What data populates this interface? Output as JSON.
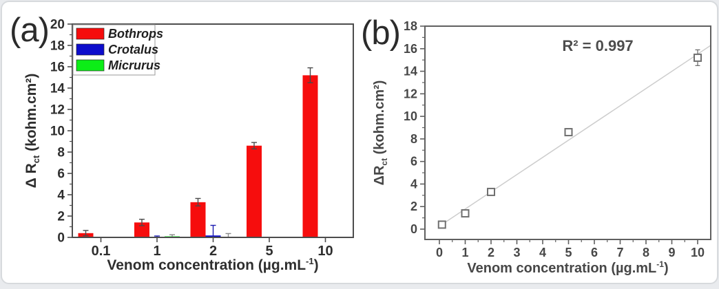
{
  "chart_data": [
    {
      "type": "bar",
      "panel_label": "(a)",
      "title": "",
      "categories": [
        "0.1",
        "1",
        "2",
        "5",
        "10"
      ],
      "series": [
        {
          "name": "Bothrops",
          "color": "#f60d0d",
          "err_color": "#4a4a4a",
          "values": [
            0.4,
            1.4,
            3.3,
            8.6,
            15.2
          ],
          "errors": [
            0.25,
            0.3,
            0.35,
            0.3,
            0.7
          ]
        },
        {
          "name": "Crotalus",
          "color": "#0d0dcc",
          "err_color": "#1a1ab0",
          "values": [
            0,
            0.05,
            0.18,
            0,
            0
          ],
          "errors": [
            0,
            0.08,
            0.95,
            0,
            0
          ]
        },
        {
          "name": "Micrurus",
          "color": "#0ced17",
          "err_color": "#8a8a8a",
          "values": [
            0,
            0.1,
            0.06,
            0,
            0
          ],
          "errors": [
            0,
            0.15,
            0.3,
            0,
            0
          ]
        }
      ],
      "ylim": [
        0,
        20
      ],
      "yticks": [
        0,
        2,
        4,
        6,
        8,
        10,
        12,
        14,
        16,
        18,
        20
      ],
      "ylabel": {
        "pre": "Δ R",
        "sub": "ct",
        "post": " (kohm.cm²)"
      },
      "xlabel": {
        "pre": "Venom concentration (µg.mL",
        "sup": "-1",
        "post": ")"
      },
      "legend_position": "top-left",
      "grid": false,
      "axis_color": "#4c4c4c",
      "text_color": "#2e2e2e"
    },
    {
      "type": "scatter",
      "panel_label": "(b)",
      "title": "",
      "x": [
        0.1,
        1,
        2,
        5,
        10
      ],
      "y": [
        0.4,
        1.4,
        3.3,
        8.6,
        15.2
      ],
      "yerr": [
        0.2,
        0.2,
        0.2,
        0.25,
        0.7
      ],
      "fit_line": {
        "slope": 1.526,
        "intercept": 0.26,
        "x_start": 0,
        "x_end": 10.5,
        "color": "#cdcdcd"
      },
      "annotation": "R² = 0.997",
      "xlim": [
        -0.56,
        10.5
      ],
      "ylim": [
        0,
        18
      ],
      "xticks": [
        0,
        1,
        2,
        3,
        4,
        5,
        6,
        7,
        8,
        9,
        10
      ],
      "yticks": [
        0,
        2,
        4,
        6,
        8,
        10,
        12,
        14,
        16,
        18
      ],
      "ylabel": {
        "pre": "ΔR",
        "sub": "ct",
        "post": " (kohm.cm²)"
      },
      "xlabel": {
        "pre": "Venom concentration (µg.mL",
        "sup": "-1",
        "post": ")"
      },
      "marker": "open-square",
      "marker_color": "#6f6f6f",
      "grid": false,
      "legend_position": "none",
      "axis_color": "#5f5f5f",
      "text_color": "#474747"
    }
  ]
}
